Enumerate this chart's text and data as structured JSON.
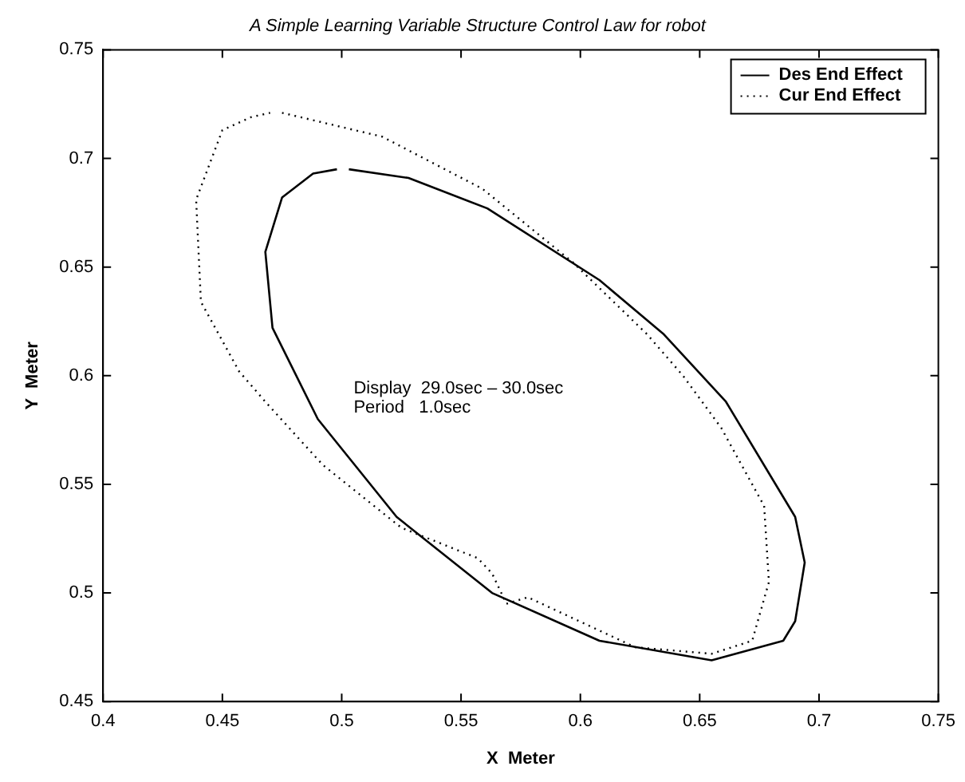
{
  "chart_data": {
    "type": "line",
    "title": "A Simple Learning Variable Structure Control Law for robot",
    "xlabel": "X  Meter",
    "ylabel": "Y  Meter",
    "annotations": [
      "Display  29.0sec – 30.0sec",
      "Period   1.0sec"
    ],
    "xlim": [
      0.4,
      0.75
    ],
    "xticks": [
      0.4,
      0.45,
      0.5,
      0.55,
      0.6,
      0.65,
      0.7,
      0.75
    ],
    "ylim": [
      0.45,
      0.75
    ],
    "yticks": [
      0.45,
      0.5,
      0.55,
      0.6,
      0.65,
      0.7,
      0.75
    ],
    "grid": false,
    "legend": "top right",
    "marker": "none",
    "series": [
      {
        "name": "Des End Effect",
        "color": "#000000",
        "line_style": "solid",
        "x": [
          0.503,
          0.528,
          0.561,
          0.608,
          0.635,
          0.661,
          0.69,
          0.694,
          0.69,
          0.685,
          0.655,
          0.608,
          0.563,
          0.523,
          0.49,
          0.471,
          0.468,
          0.475,
          0.488,
          0.498
        ],
        "values": [
          0.695,
          0.691,
          0.677,
          0.644,
          0.619,
          0.588,
          0.535,
          0.514,
          0.487,
          0.478,
          0.469,
          0.478,
          0.5,
          0.535,
          0.58,
          0.622,
          0.657,
          0.682,
          0.693,
          0.695
        ]
      },
      {
        "name": "Cur End Effect",
        "color": "#000000",
        "line_style": "dotted",
        "x": [
          0.475,
          0.517,
          0.559,
          0.597,
          0.628,
          0.643,
          0.659,
          0.677,
          0.679,
          0.672,
          0.655,
          0.623,
          0.578,
          0.569,
          0.563,
          0.557,
          0.525,
          0.492,
          0.468,
          0.457,
          0.441,
          0.439,
          0.45,
          0.462,
          0.47
        ],
        "values": [
          0.721,
          0.71,
          0.686,
          0.652,
          0.619,
          0.6,
          0.576,
          0.54,
          0.505,
          0.478,
          0.472,
          0.475,
          0.498,
          0.495,
          0.509,
          0.516,
          0.53,
          0.559,
          0.588,
          0.602,
          0.634,
          0.681,
          0.713,
          0.719,
          0.721
        ]
      }
    ]
  }
}
